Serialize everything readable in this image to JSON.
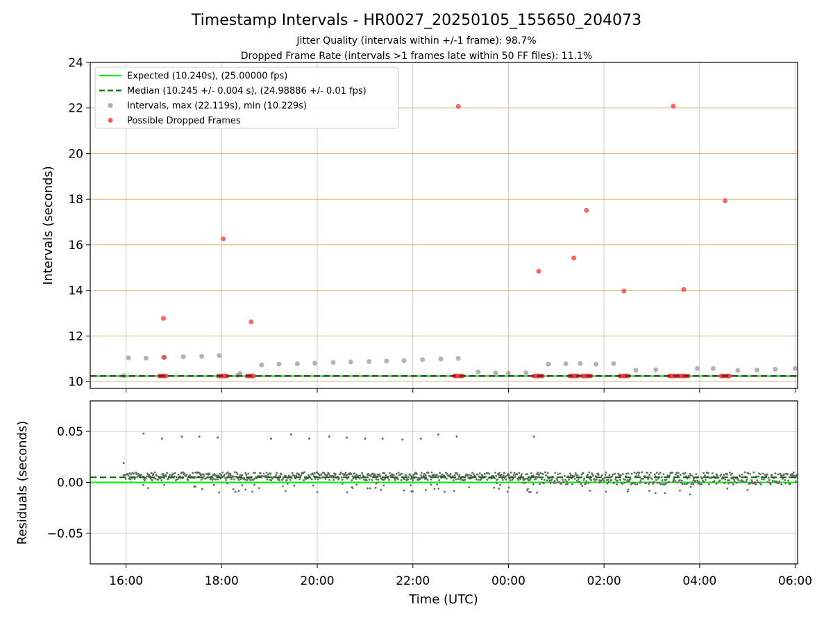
{
  "title": "Timestamp Intervals - HR0027_20250105_155650_204073",
  "subtitle_jitter": "Jitter Quality (intervals within +/-1 frame): 98.7%",
  "subtitle_dropped": "Dropped Frame Rate (intervals >1 frames late within 50 FF files): 11.1%",
  "colors": {
    "expected": "#00ee00",
    "median": "#007700",
    "interval": "#999999",
    "dropped": "#ff3333",
    "residual": "#666666",
    "hgrid_top": "#d4b96a",
    "grid": "#cccccc",
    "median_overlay": "#333333"
  },
  "chart_data": [
    {
      "type": "scatter",
      "name": "intervals-panel",
      "ylabel": "Intervals (seconds)",
      "ylim": [
        9.7,
        24
      ],
      "yticks": [
        10,
        12,
        14,
        16,
        18,
        20,
        22,
        24
      ],
      "xlim": [
        "15:15",
        "06:03"
      ],
      "xticks": [
        "16:00",
        "18:00",
        "20:00",
        "22:00",
        "00:00",
        "02:00",
        "04:00",
        "06:00"
      ],
      "grid": true,
      "legend_position": "top-left",
      "legend": [
        "Expected (10.240s), (25.00000 fps)",
        "Median (10.245 +/- 0.004 s), (24.98886 +/- 0.01 fps)",
        "Intervals, max (22.119s), min (10.229s)",
        "Possible Dropped Frames"
      ],
      "expected_line": 10.24,
      "median_line": 10.245,
      "series": [
        {
          "name": "Intervals, max (22.119s), min (10.229s)",
          "points": [
            [
              "15:57",
              10.26
            ],
            [
              "16:03",
              11.04
            ],
            [
              "16:25",
              11.03
            ],
            [
              "16:47",
              11.06
            ],
            [
              "17:12",
              11.09
            ],
            [
              "17:35",
              11.11
            ],
            [
              "17:57",
              11.14
            ],
            [
              "18:20",
              10.27
            ],
            [
              "18:23",
              10.35
            ],
            [
              "18:50",
              10.73
            ],
            [
              "19:12",
              10.76
            ],
            [
              "19:35",
              10.78
            ],
            [
              "19:57",
              10.81
            ],
            [
              "20:20",
              10.84
            ],
            [
              "20:42",
              10.86
            ],
            [
              "21:05",
              10.88
            ],
            [
              "21:27",
              10.9
            ],
            [
              "21:49",
              10.92
            ],
            [
              "22:12",
              10.96
            ],
            [
              "22:35",
              10.99
            ],
            [
              "22:57",
              11.02
            ],
            [
              "23:22",
              10.42
            ],
            [
              "23:44",
              10.38
            ],
            [
              "00:00",
              10.37
            ],
            [
              "00:22",
              10.38
            ],
            [
              "00:50",
              10.76
            ],
            [
              "01:12",
              10.78
            ],
            [
              "01:30",
              10.79
            ],
            [
              "01:50",
              10.76
            ],
            [
              "02:12",
              10.79
            ],
            [
              "02:40",
              10.5
            ],
            [
              "03:05",
              10.52
            ],
            [
              "03:57",
              10.57
            ],
            [
              "04:17",
              10.57
            ],
            [
              "04:48",
              10.49
            ],
            [
              "05:12",
              10.51
            ],
            [
              "05:35",
              10.54
            ],
            [
              "06:00",
              10.58
            ]
          ]
        },
        {
          "name": "Possible Dropped Frames",
          "points": [
            [
              "16:47",
              12.77
            ],
            [
              "16:48",
              11.06
            ],
            [
              "18:02",
              16.26
            ],
            [
              "18:37",
              12.62
            ],
            [
              "22:57",
              22.07
            ],
            [
              "00:38",
              14.84
            ],
            [
              "01:22",
              15.42
            ],
            [
              "01:38",
              17.51
            ],
            [
              "02:25",
              13.97
            ],
            [
              "03:27",
              22.08
            ],
            [
              "03:40",
              14.04
            ],
            [
              "04:32",
              17.93
            ]
          ],
          "baseline_clusters": [
            [
              "16:42",
              "16:52"
            ],
            [
              "17:56",
              "18:08"
            ],
            [
              "18:32",
              "18:42"
            ],
            [
              "22:52",
              "23:03"
            ],
            [
              "00:32",
              "00:45"
            ],
            [
              "01:17",
              "01:29"
            ],
            [
              "01:33",
              "01:45"
            ],
            [
              "02:20",
              "02:32"
            ],
            [
              "03:22",
              "03:47"
            ],
            [
              "04:27",
              "04:40"
            ]
          ]
        }
      ]
    },
    {
      "type": "scatter",
      "name": "residuals-panel",
      "ylabel": "Residuals (seconds)",
      "xlabel": "Time (UTC)",
      "ylim": [
        -0.08,
        0.08
      ],
      "yticks": [
        0.05,
        0.0,
        -0.05
      ],
      "ytick_labels": [
        "0.05",
        "0.00",
        "−0.05"
      ],
      "xlim": [
        "15:15",
        "06:03"
      ],
      "xticks": [
        "16:00",
        "18:00",
        "20:00",
        "22:00",
        "00:00",
        "02:00",
        "04:00",
        "06:00"
      ],
      "grid": true,
      "expected_line": 0.0,
      "median_line": 0.005,
      "outliers": [
        [
          "15:57",
          0.019
        ],
        [
          "16:22",
          0.048
        ],
        [
          "16:45",
          0.043
        ],
        [
          "17:10",
          0.045
        ],
        [
          "17:32",
          0.045
        ],
        [
          "17:55",
          0.044
        ],
        [
          "19:02",
          0.043
        ],
        [
          "19:27",
          0.047
        ],
        [
          "19:50",
          0.043
        ],
        [
          "20:15",
          0.045
        ],
        [
          "20:37",
          0.044
        ],
        [
          "21:00",
          0.043
        ],
        [
          "21:22",
          0.043
        ],
        [
          "21:47",
          0.042
        ],
        [
          "22:10",
          0.043
        ],
        [
          "22:32",
          0.047
        ],
        [
          "22:55",
          0.045
        ],
        [
          "00:32",
          0.045
        ]
      ],
      "bands": [
        {
          "from": "15:57",
          "to": "00:35",
          "center": 0.006,
          "spread": 0.004,
          "low_scatter": -0.01
        },
        {
          "from": "00:35",
          "to": "06:03",
          "center": 0.004,
          "spread": 0.006,
          "low_scatter": -0.012
        }
      ]
    }
  ]
}
